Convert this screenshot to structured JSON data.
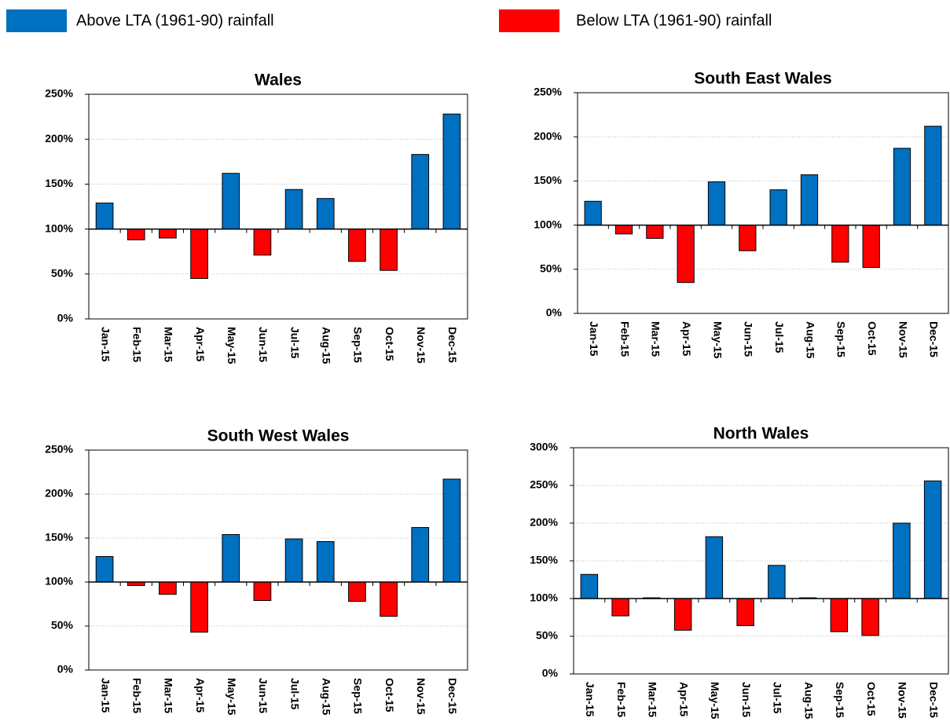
{
  "legend": [
    {
      "label": "Above LTA (1961-90) rainfall",
      "color": "#0070c0"
    },
    {
      "label": "Below LTA (1961-90)  rainfall",
      "color": "#ff0000"
    }
  ],
  "chart_data": [
    {
      "type": "bar",
      "title": "Wales",
      "categories": [
        "Jan-15",
        "Feb-15",
        "Mar-15",
        "Apr-15",
        "May-15",
        "Jun-15",
        "Jul-15",
        "Aug-15",
        "Sep-15",
        "Oct-15",
        "Nov-15",
        "Dec-15"
      ],
      "values": [
        129,
        88,
        90,
        45,
        162,
        71,
        144,
        134,
        64,
        54,
        183,
        228
      ],
      "baseline": 100,
      "ylim": [
        0,
        250
      ],
      "yticks": [
        {
          "value": 0,
          "label": "0%"
        },
        {
          "value": 50,
          "label": "50%"
        },
        {
          "value": 100,
          "label": "100%"
        },
        {
          "value": 150,
          "label": "150%"
        },
        {
          "value": 200,
          "label": "200%"
        },
        {
          "value": 250,
          "label": "250%"
        }
      ],
      "grid": true
    },
    {
      "type": "bar",
      "title": "South East Wales",
      "categories": [
        "Jan-15",
        "Feb-15",
        "Mar-15",
        "Apr-15",
        "May-15",
        "Jun-15",
        "Jul-15",
        "Aug-15",
        "Sep-15",
        "Oct-15",
        "Nov-15",
        "Dec-15"
      ],
      "values": [
        127,
        90,
        85,
        35,
        149,
        71,
        140,
        157,
        58,
        52,
        187,
        212
      ],
      "baseline": 100,
      "ylim": [
        0,
        250
      ],
      "yticks": [
        {
          "value": 0,
          "label": "0%"
        },
        {
          "value": 50,
          "label": "50%"
        },
        {
          "value": 100,
          "label": "100%"
        },
        {
          "value": 150,
          "label": "150%"
        },
        {
          "value": 200,
          "label": "200%"
        },
        {
          "value": 250,
          "label": "250%"
        }
      ],
      "grid": true
    },
    {
      "type": "bar",
      "title": "South West Wales",
      "categories": [
        "Jan-15",
        "Feb-15",
        "Mar-15",
        "Apr-15",
        "May-15",
        "Jun-15",
        "Jul-15",
        "Aug-15",
        "Sep-15",
        "Oct-15",
        "Nov-15",
        "Dec-15"
      ],
      "values": [
        129,
        96,
        86,
        43,
        154,
        79,
        149,
        146,
        78,
        61,
        162,
        217
      ],
      "baseline": 100,
      "ylim": [
        0,
        250
      ],
      "yticks": [
        {
          "value": 0,
          "label": "0%"
        },
        {
          "value": 50,
          "label": "50%"
        },
        {
          "value": 100,
          "label": "100%"
        },
        {
          "value": 150,
          "label": "150%"
        },
        {
          "value": 200,
          "label": "200%"
        },
        {
          "value": 250,
          "label": "250%"
        }
      ],
      "grid": true
    },
    {
      "type": "bar",
      "title": "North Wales",
      "categories": [
        "Jan-15",
        "Feb-15",
        "Mar-15",
        "Apr-15",
        "May-15",
        "Jun-15",
        "Jul-15",
        "Aug-15",
        "Sep-15",
        "Oct-15",
        "Nov-15",
        "Dec-15"
      ],
      "values": [
        132,
        77,
        101,
        58,
        182,
        64,
        144,
        101,
        56,
        51,
        200,
        256
      ],
      "baseline": 100,
      "ylim": [
        0,
        300
      ],
      "yticks": [
        {
          "value": 0,
          "label": "0%"
        },
        {
          "value": 50,
          "label": "50%"
        },
        {
          "value": 100,
          "label": "100%"
        },
        {
          "value": 150,
          "label": "150%"
        },
        {
          "value": 200,
          "label": "200%"
        },
        {
          "value": 250,
          "label": "250%"
        },
        {
          "value": 300,
          "label": "300%"
        }
      ],
      "grid": true
    }
  ]
}
